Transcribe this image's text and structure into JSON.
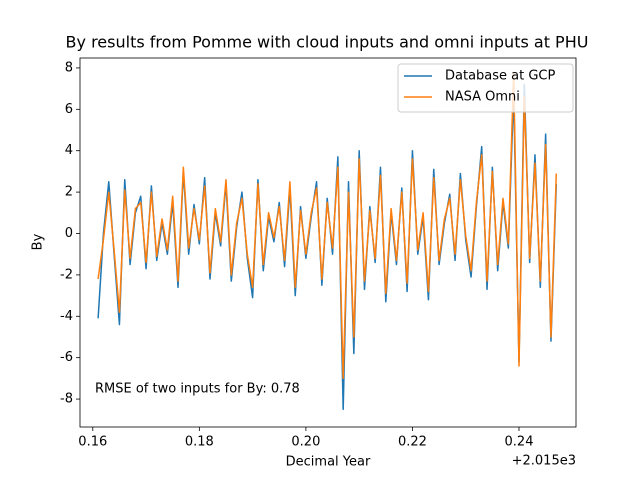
{
  "chart_data": {
    "type": "line",
    "title": "By results from Pomme with cloud inputs and omni inputs at PHU",
    "xlabel": "Decimal Year",
    "ylabel": "By",
    "x_offset_text": "+2.015e3",
    "annotation": "RMSE of two inputs for By: 0.78",
    "legend": "upper right",
    "xlim": [
      2015.1576,
      2015.2507
    ],
    "ylim": [
      -9.35,
      8.48
    ],
    "xticks": [
      {
        "value": 2015.16,
        "label": "0.16"
      },
      {
        "value": 2015.18,
        "label": "0.18"
      },
      {
        "value": 2015.2,
        "label": "0.20"
      },
      {
        "value": 2015.22,
        "label": "0.22"
      },
      {
        "value": 2015.24,
        "label": "0.24"
      }
    ],
    "yticks": [
      -8,
      -6,
      -4,
      -2,
      0,
      2,
      4,
      6,
      8
    ],
    "x": [
      2015.161,
      2015.162,
      2015.163,
      2015.164,
      2015.165,
      2015.166,
      2015.167,
      2015.168,
      2015.169,
      2015.17,
      2015.171,
      2015.172,
      2015.173,
      2015.174,
      2015.175,
      2015.176,
      2015.177,
      2015.178,
      2015.179,
      2015.18,
      2015.181,
      2015.182,
      2015.183,
      2015.184,
      2015.185,
      2015.186,
      2015.187,
      2015.188,
      2015.189,
      2015.19,
      2015.191,
      2015.192,
      2015.193,
      2015.194,
      2015.195,
      2015.196,
      2015.197,
      2015.198,
      2015.199,
      2015.2,
      2015.201,
      2015.202,
      2015.203,
      2015.204,
      2015.205,
      2015.206,
      2015.207,
      2015.208,
      2015.209,
      2015.21,
      2015.211,
      2015.212,
      2015.213,
      2015.214,
      2015.215,
      2015.216,
      2015.217,
      2015.218,
      2015.219,
      2015.22,
      2015.221,
      2015.222,
      2015.223,
      2015.224,
      2015.225,
      2015.226,
      2015.227,
      2015.228,
      2015.229,
      2015.23,
      2015.231,
      2015.232,
      2015.233,
      2015.234,
      2015.235,
      2015.236,
      2015.237,
      2015.238,
      2015.239,
      2015.24,
      2015.241,
      2015.242,
      2015.243,
      2015.244,
      2015.245,
      2015.246,
      2015.247
    ],
    "series": [
      {
        "name": "Database at GCP",
        "color": "#1f77b4",
        "values": [
          -4.1,
          0,
          2.5,
          -1,
          -4.4,
          2.6,
          -1.5,
          1,
          1.8,
          -1.7,
          2.3,
          -1.3,
          0.5,
          -1,
          1.5,
          -2.6,
          3,
          -1,
          1.4,
          -0.5,
          2.7,
          -2.2,
          1,
          -0.6,
          2.4,
          -2.3,
          0.3,
          2,
          -1.2,
          -3.1,
          2.6,
          -1.8,
          0.8,
          -0.4,
          1.5,
          -1.6,
          2.2,
          -3,
          1.3,
          -1.2,
          0.8,
          2.5,
          -2.5,
          1.7,
          -1,
          3.7,
          -8.5,
          2.5,
          -5.8,
          4,
          -2.7,
          1.3,
          -1.4,
          3.2,
          -3.3,
          1,
          -1.5,
          2.2,
          -2.8,
          4,
          -1,
          0.8,
          -3.2,
          3.1,
          -1.5,
          0.5,
          1.9,
          -1.3,
          2.9,
          -0.3,
          -2.1,
          1.3,
          4.2,
          -2.7,
          3.2,
          -1.8,
          1.5,
          -0.7,
          6.8,
          -6.2,
          7.2,
          -1.4,
          3.8,
          -2.6,
          4.8,
          -5.2,
          2.4
        ]
      },
      {
        "name": "NASA Omni",
        "color": "#ff7f0e",
        "values": [
          -2.2,
          -0.3,
          2,
          -0.8,
          -3.8,
          2.1,
          -1.2,
          1.2,
          1.5,
          -1.4,
          2,
          -1.1,
          0.7,
          -0.8,
          1.8,
          -2.3,
          3.2,
          -0.7,
          1.2,
          -0.3,
          2.3,
          -1.9,
          1.2,
          -0.4,
          2.6,
          -2,
          0.5,
          1.7,
          -1,
          -2.6,
          2.4,
          -1.5,
          1,
          -0.2,
          1.3,
          -1.3,
          2.5,
          -2.6,
          1.1,
          -1,
          1,
          2.2,
          -2.2,
          1.5,
          -0.7,
          3.2,
          -7,
          2,
          -5,
          3.6,
          -2.3,
          1.1,
          -1.2,
          2.8,
          -2.9,
          1.2,
          -1.3,
          2,
          -2.4,
          3.6,
          -0.8,
          1,
          -2.8,
          2.7,
          -1.3,
          0.7,
          1.7,
          -1,
          2.6,
          -0.1,
          -1.8,
          1.5,
          3.8,
          -2.3,
          3,
          -1.5,
          1.7,
          -0.5,
          7.8,
          -6.4,
          6.6,
          -1.2,
          3.4,
          -2.3,
          4.3,
          -5,
          2.9
        ]
      }
    ]
  }
}
